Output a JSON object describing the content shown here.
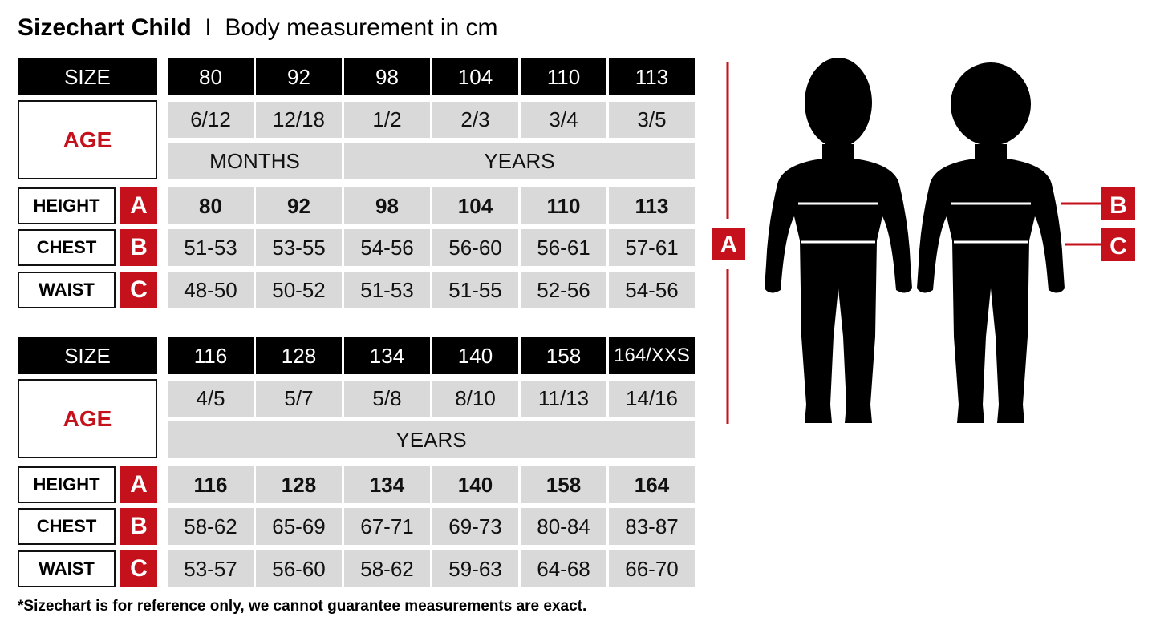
{
  "title": {
    "bold": "Sizechart Child",
    "separator": "I",
    "rest": "Body measurement in cm"
  },
  "labels": {
    "size": "SIZE",
    "age": "AGE",
    "height": "HEIGHT",
    "chest": "CHEST",
    "waist": "WAIST",
    "a": "A",
    "b": "B",
    "c": "C"
  },
  "tables": [
    {
      "sizes": [
        "80",
        "92",
        "98",
        "104",
        "110",
        "113"
      ],
      "ages": [
        "6/12",
        "12/18",
        "1/2",
        "2/3",
        "3/4",
        "3/5"
      ],
      "units": [
        {
          "label": "MONTHS",
          "span": 2
        },
        {
          "label": "YEARS",
          "span": 4
        }
      ],
      "height": [
        "80",
        "92",
        "98",
        "104",
        "110",
        "113"
      ],
      "chest": [
        "51-53",
        "53-55",
        "54-56",
        "56-60",
        "56-61",
        "57-61"
      ],
      "waist": [
        "48-50",
        "50-52",
        "51-53",
        "51-55",
        "52-56",
        "54-56"
      ]
    },
    {
      "sizes": [
        "116",
        "128",
        "134",
        "140",
        "158",
        "164/XXS"
      ],
      "ages": [
        "4/5",
        "5/7",
        "5/8",
        "8/10",
        "11/13",
        "14/16"
      ],
      "units": [
        {
          "label": "YEARS",
          "span": 6
        }
      ],
      "height": [
        "116",
        "128",
        "134",
        "140",
        "158",
        "164"
      ],
      "chest": [
        "58-62",
        "65-69",
        "67-71",
        "69-73",
        "80-84",
        "83-87"
      ],
      "waist": [
        "53-57",
        "56-60",
        "58-62",
        "59-63",
        "64-68",
        "66-70"
      ]
    }
  ],
  "diagram": {
    "figures": [
      "boy-silhouette",
      "girl-silhouette"
    ],
    "markers": [
      "A",
      "B",
      "C"
    ]
  },
  "footnote": "*Sizechart is for reference only, we cannot guarantee measurements are exact.",
  "colors": {
    "accent": "#c4111b",
    "header": "#000000",
    "cell": "#d9d9d9"
  }
}
